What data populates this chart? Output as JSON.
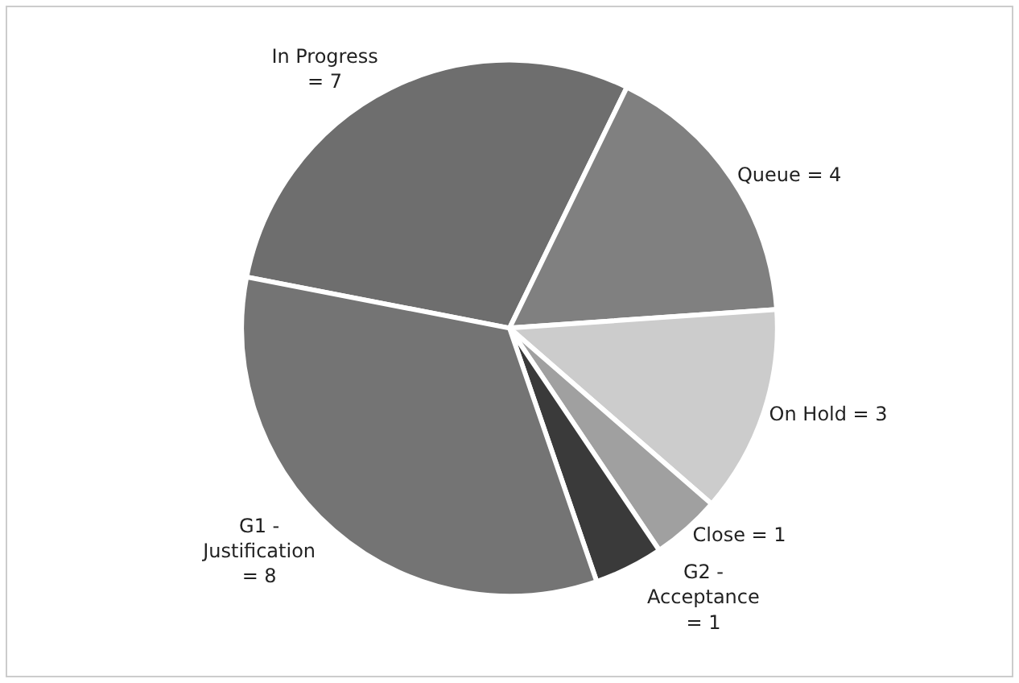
{
  "chart_data": {
    "type": "pie",
    "categories": [
      "In Progress",
      "Queue",
      "On Hold",
      "Close",
      "G2 - Acceptance",
      "G1 - Justification"
    ],
    "values": [
      7,
      4,
      3,
      1,
      1,
      8
    ],
    "colors": [
      "#6e6e6e",
      "#808080",
      "#cccccc",
      "#a0a0a0",
      "#3a3a3a",
      "#747474"
    ],
    "value_labels": [
      "= 7",
      "= 4",
      "= 3",
      "= 1",
      "= 1",
      "= 8"
    ],
    "legend": false
  }
}
